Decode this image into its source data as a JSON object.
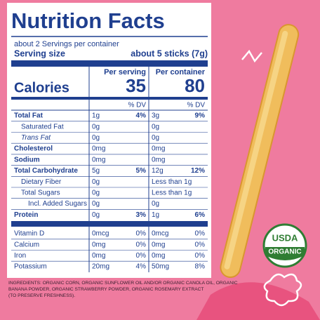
{
  "header": {
    "title": "Nutrition Facts",
    "servings": "about 2 Servings per container",
    "serving_size_label": "Serving size",
    "serving_size_value": "about 5 sticks (7g)"
  },
  "columns": [
    "Per serving",
    "Per container"
  ],
  "calories": {
    "label": "Calories",
    "values": [
      "35",
      "80"
    ]
  },
  "dv_headers": [
    "% DV",
    "% DV"
  ],
  "rows": [
    {
      "label": "Total Fat",
      "bold": true,
      "serving": "1g",
      "serving_dv": "4%",
      "container": "3g",
      "container_dv": "9%"
    },
    {
      "label": "Saturated Fat",
      "indent": 1,
      "serving": "0g",
      "container": "0g"
    },
    {
      "label": "Trans Fat",
      "indent": 1,
      "italic": true,
      "serving": "0g",
      "container": "0g"
    },
    {
      "label": "Cholesterol",
      "bold": true,
      "serving": "0mg",
      "container": "0mg"
    },
    {
      "label": "Sodium",
      "bold": true,
      "serving": "0mg",
      "container": "0mg"
    },
    {
      "label": "Total Carbohydrate",
      "bold": true,
      "serving": "5g",
      "serving_dv": "5%",
      "container": "12g",
      "container_dv": "12%"
    },
    {
      "label": "Dietary Fiber",
      "indent": 1,
      "serving": "0g",
      "container": "Less than 1g"
    },
    {
      "label": "Total Sugars",
      "indent": 1,
      "serving": "0g",
      "container": "Less than 1g"
    },
    {
      "label": "Incl. Added Sugars",
      "indent": 2,
      "serving": "0g",
      "container": "0g"
    },
    {
      "label": "Protein",
      "bold": true,
      "serving": "0g",
      "serving_dv": "3%",
      "container": "1g",
      "container_dv": "6%"
    }
  ],
  "vitamins": [
    {
      "label": "Vitamin D",
      "serving": "0mcg",
      "serving_dv": "0%",
      "container": "0mcg",
      "container_dv": "0%"
    },
    {
      "label": "Calcium",
      "serving": "0mg",
      "serving_dv": "0%",
      "container": "0mg",
      "container_dv": "0%"
    },
    {
      "label": "Iron",
      "serving": "0mg",
      "serving_dv": "0%",
      "container": "0mg",
      "container_dv": "0%"
    },
    {
      "label": "Potassium",
      "serving": "20mg",
      "serving_dv": "4%",
      "container": "50mg",
      "container_dv": "8%"
    }
  ],
  "ingredients": [
    "INGREDIENTS: ORGANIC CORN, ORGANIC SUNFLOWER OIL AND/OR ORGANIC CANOLA OIL, ORGANIC",
    "BANANA POWDER, ORGANIC STRAWBERRY POWDER, ORGANIC ROSEMARY EXTRACT",
    "(TO PRESERVE FRESHNESS)."
  ],
  "badge": {
    "top": "USDA",
    "bottom": "ORGANIC"
  }
}
